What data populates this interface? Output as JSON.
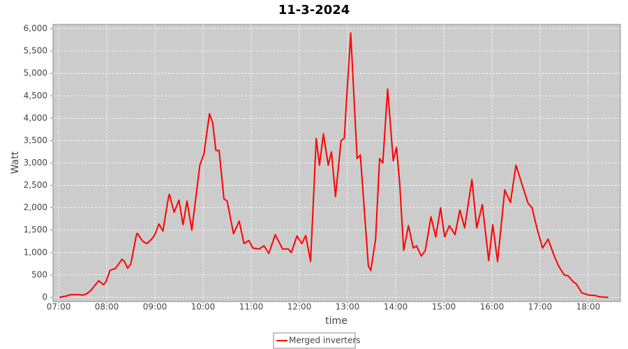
{
  "chart_data": {
    "type": "line",
    "title": "11-3-2024",
    "x_label": "time",
    "y_label": "Watt",
    "x": [
      "07:01",
      "07:10",
      "07:15",
      "07:25",
      "07:30",
      "07:35",
      "07:40",
      "07:50",
      "07:56",
      "07:59",
      "08:04",
      "08:11",
      "08:19",
      "08:22",
      "08:26",
      "08:30",
      "08:37",
      "08:38",
      "08:45",
      "08:50",
      "08:56",
      "09:00",
      "09:05",
      "09:10",
      "09:17",
      "09:18",
      "09:24",
      "09:30",
      "09:35",
      "09:40",
      "09:46",
      "09:56",
      "10:01",
      "10:08",
      "10:12",
      "10:16",
      "10:20",
      "10:26",
      "10:30",
      "10:38",
      "10:45",
      "10:51",
      "10:57",
      "11:02",
      "11:10",
      "11:16",
      "11:22",
      "11:30",
      "11:39",
      "11:46",
      "11:50",
      "11:57",
      "12:03",
      "12:08",
      "12:14",
      "12:21",
      "12:25",
      "12:30",
      "12:36",
      "12:40",
      "12:45",
      "12:52",
      "12:56",
      "13:00",
      "13:04",
      "13:08",
      "13:12",
      "13:16",
      "13:20",
      "13:26",
      "13:29",
      "13:35",
      "13:40",
      "13:44",
      "13:50",
      "13:57",
      "14:01",
      "14:05",
      "14:10",
      "14:16",
      "14:22",
      "14:26",
      "14:32",
      "14:37",
      "14:44",
      "14:50",
      "14:56",
      "15:01",
      "15:07",
      "15:14",
      "15:20",
      "15:26",
      "15:35",
      "15:41",
      "15:48",
      "15:56",
      "16:01",
      "16:07",
      "16:16",
      "16:23",
      "16:30",
      "16:37",
      "16:45",
      "16:50",
      "16:56",
      "17:03",
      "17:10",
      "17:17",
      "17:23",
      "17:30",
      "17:35",
      "17:41",
      "17:45",
      "17:52",
      "18:01",
      "18:09",
      "18:14",
      "18:25"
    ],
    "series": [
      {
        "name": "Merged inverters",
        "color": "#ff0000",
        "values": [
          0,
          30,
          60,
          60,
          50,
          80,
          150,
          370,
          280,
          350,
          600,
          650,
          850,
          800,
          650,
          750,
          1400,
          1430,
          1250,
          1200,
          1300,
          1400,
          1640,
          1480,
          2250,
          2300,
          1900,
          2170,
          1620,
          2150,
          1500,
          2950,
          3200,
          4100,
          3900,
          3280,
          3280,
          2200,
          2150,
          1420,
          1700,
          1200,
          1270,
          1100,
          1080,
          1150,
          980,
          1400,
          1080,
          1080,
          1000,
          1370,
          1200,
          1380,
          800,
          3550,
          2950,
          3650,
          2950,
          3250,
          2250,
          3500,
          3550,
          4750,
          5900,
          4500,
          3100,
          3180,
          2200,
          700,
          600,
          1300,
          3100,
          3000,
          4650,
          3050,
          3350,
          2550,
          1050,
          1600,
          1100,
          1150,
          920,
          1050,
          1800,
          1350,
          2000,
          1350,
          1600,
          1400,
          1950,
          1550,
          2630,
          1550,
          2070,
          820,
          1620,
          800,
          2400,
          2120,
          2950,
          2550,
          2100,
          2000,
          1550,
          1100,
          1300,
          950,
          700,
          500,
          480,
          350,
          300,
          100,
          50,
          40,
          10,
          0
        ]
      }
    ],
    "xlim": [
      "06:53",
      "18:40"
    ],
    "xticks": [
      "07:00",
      "08:00",
      "09:00",
      "10:00",
      "11:00",
      "12:00",
      "13:00",
      "14:00",
      "15:00",
      "16:00",
      "17:00",
      "18:00"
    ],
    "ylim": [
      -94,
      6094
    ],
    "yticks": [
      0,
      500,
      {
        "value": 1000,
        "label": "1,000"
      },
      {
        "value": 1500,
        "label": "1,500"
      },
      {
        "value": 2000,
        "label": "2,000"
      },
      {
        "value": 2500,
        "label": "2,500"
      },
      {
        "value": 3000,
        "label": "3,000"
      },
      {
        "value": 3500,
        "label": "3,500"
      },
      {
        "value": 4000,
        "label": "4,000"
      },
      {
        "value": 4500,
        "label": "4,500"
      },
      {
        "value": 5000,
        "label": "5,000"
      },
      {
        "value": 5500,
        "label": "5,500"
      },
      {
        "value": 6000,
        "label": "6,000"
      }
    ],
    "grid": true,
    "legend": "bottom"
  }
}
